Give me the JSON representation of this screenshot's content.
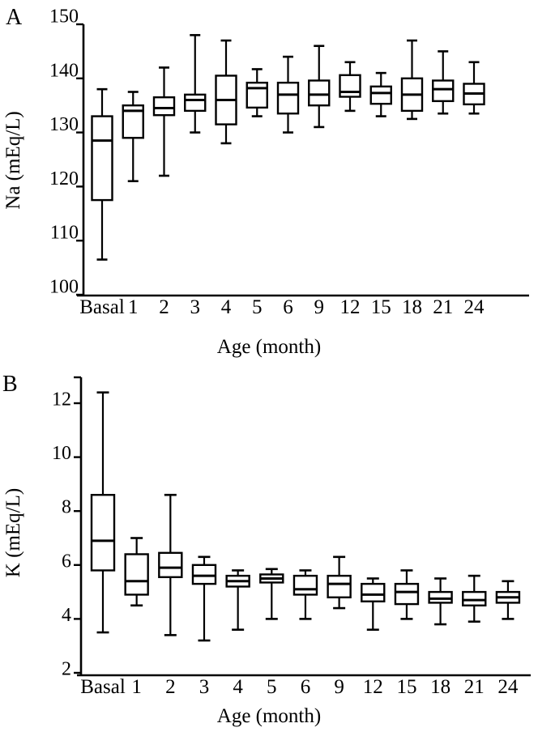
{
  "figure": {
    "background": "#ffffff",
    "ink_color": "#000000",
    "panel_a_letter": "A",
    "panel_b_letter": "B"
  },
  "chart_data": [
    {
      "type": "boxplot",
      "panel_label": "A",
      "title": "",
      "ylabel": "Na (mEq/L)",
      "xlabel": "Age (month)",
      "ylim": [
        100,
        150
      ],
      "yticks": [
        150,
        140,
        130,
        120,
        110,
        100
      ],
      "grid": false,
      "categories": [
        "Basal",
        "1",
        "2",
        "3",
        "4",
        "5",
        "6",
        "9",
        "12",
        "15",
        "18",
        "21",
        "24"
      ],
      "boxes": [
        {
          "category": "Basal",
          "low": 106.5,
          "q1": 117.5,
          "median": 128.5,
          "q3": 133,
          "high": 138
        },
        {
          "category": "1",
          "low": 121,
          "q1": 129,
          "median": 134,
          "q3": 135,
          "high": 137.5
        },
        {
          "category": "2",
          "low": 122,
          "q1": 133.2,
          "median": 134.5,
          "q3": 136.5,
          "high": 142
        },
        {
          "category": "3",
          "low": 130,
          "q1": 134,
          "median": 136,
          "q3": 137,
          "high": 148
        },
        {
          "category": "4",
          "low": 128,
          "q1": 131.5,
          "median": 136,
          "q3": 140.5,
          "high": 147
        },
        {
          "category": "5",
          "low": 133,
          "q1": 134.6,
          "median": 138.2,
          "q3": 139.2,
          "high": 141.7
        },
        {
          "category": "6",
          "low": 130,
          "q1": 133.5,
          "median": 137,
          "q3": 139.2,
          "high": 144
        },
        {
          "category": "9",
          "low": 131,
          "q1": 135,
          "median": 137,
          "q3": 139.6,
          "high": 146
        },
        {
          "category": "12",
          "low": 134,
          "q1": 136.6,
          "median": 137.5,
          "q3": 140.6,
          "high": 143
        },
        {
          "category": "15",
          "low": 133,
          "q1": 135.3,
          "median": 137.3,
          "q3": 138.5,
          "high": 141
        },
        {
          "category": "18",
          "low": 132.5,
          "q1": 134,
          "median": 137,
          "q3": 140,
          "high": 147
        },
        {
          "category": "21",
          "low": 133.5,
          "q1": 135.8,
          "median": 138,
          "q3": 139.6,
          "high": 145
        },
        {
          "category": "24",
          "low": 133.5,
          "q1": 135.2,
          "median": 137.2,
          "q3": 139,
          "high": 143
        }
      ]
    },
    {
      "type": "boxplot",
      "panel_label": "B",
      "title": "",
      "ylabel": "K (mEq/L)",
      "xlabel": "Age (month)",
      "ylim": [
        2,
        13
      ],
      "yticks": [
        12,
        10,
        8,
        6,
        4,
        2
      ],
      "grid": false,
      "categories": [
        "Basal",
        "1",
        "2",
        "3",
        "4",
        "5",
        "6",
        "9",
        "12",
        "15",
        "18",
        "21",
        "24"
      ],
      "boxes": [
        {
          "category": "Basal",
          "low": 3.5,
          "q1": 5.8,
          "median": 6.9,
          "q3": 8.6,
          "high": 12.4
        },
        {
          "category": "1",
          "low": 4.5,
          "q1": 4.9,
          "median": 5.4,
          "q3": 6.4,
          "high": 7.0
        },
        {
          "category": "2",
          "low": 3.4,
          "q1": 5.55,
          "median": 5.9,
          "q3": 6.45,
          "high": 8.6
        },
        {
          "category": "3",
          "low": 3.2,
          "q1": 5.3,
          "median": 5.6,
          "q3": 6.0,
          "high": 6.3
        },
        {
          "category": "4",
          "low": 3.6,
          "q1": 5.2,
          "median": 5.4,
          "q3": 5.6,
          "high": 5.8
        },
        {
          "category": "5",
          "low": 4.0,
          "q1": 5.35,
          "median": 5.5,
          "q3": 5.65,
          "high": 5.85
        },
        {
          "category": "6",
          "low": 4.0,
          "q1": 4.9,
          "median": 5.1,
          "q3": 5.6,
          "high": 5.8
        },
        {
          "category": "9",
          "low": 4.4,
          "q1": 4.8,
          "median": 5.3,
          "q3": 5.6,
          "high": 6.3
        },
        {
          "category": "12",
          "low": 3.6,
          "q1": 4.65,
          "median": 4.9,
          "q3": 5.3,
          "high": 5.5
        },
        {
          "category": "15",
          "low": 4.0,
          "q1": 4.55,
          "median": 5.0,
          "q3": 5.3,
          "high": 5.8
        },
        {
          "category": "18",
          "low": 3.8,
          "q1": 4.6,
          "median": 4.75,
          "q3": 5.0,
          "high": 5.5
        },
        {
          "category": "21",
          "low": 3.9,
          "q1": 4.5,
          "median": 4.7,
          "q3": 5.0,
          "high": 5.6
        },
        {
          "category": "24",
          "low": 4.0,
          "q1": 4.6,
          "median": 4.8,
          "q3": 5.0,
          "high": 5.4
        }
      ]
    }
  ]
}
